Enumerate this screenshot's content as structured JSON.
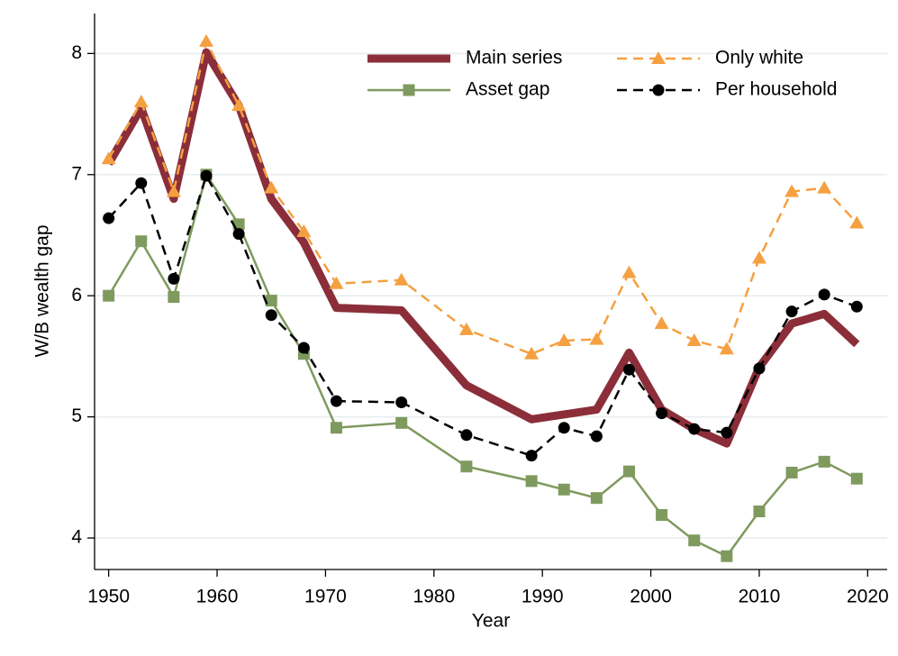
{
  "chart_data": {
    "type": "line",
    "x": [
      1950,
      1953,
      1956,
      1959,
      1962,
      1965,
      1968,
      1971,
      1977,
      1983,
      1989,
      1992,
      1995,
      1998,
      2001,
      2004,
      2007,
      2010,
      2013,
      2016,
      2019
    ],
    "series": [
      {
        "name": "Main series",
        "color": "#8b2e3a",
        "dash": "solid",
        "marker": "none",
        "values": [
          7.09,
          7.55,
          6.8,
          8.01,
          7.57,
          6.8,
          6.44,
          5.9,
          5.88,
          5.26,
          4.98,
          5.02,
          5.06,
          5.53,
          5.06,
          4.9,
          4.78,
          5.41,
          5.77,
          5.85,
          5.6
        ]
      },
      {
        "name": "Only white",
        "color": "#f5a040",
        "dash": "dashed",
        "marker": "triangle",
        "values": [
          7.13,
          7.6,
          6.86,
          8.1,
          7.57,
          6.89,
          6.53,
          6.1,
          6.13,
          5.72,
          5.52,
          5.63,
          5.64,
          6.19,
          5.77,
          5.63,
          5.56,
          6.31,
          6.86,
          6.89,
          6.6
        ]
      },
      {
        "name": "Asset gap",
        "color": "#7f9a5e",
        "dash": "solid",
        "marker": "square",
        "values": [
          6.0,
          6.45,
          5.99,
          7.0,
          6.59,
          5.96,
          5.52,
          4.91,
          4.95,
          4.59,
          4.47,
          4.4,
          4.33,
          4.55,
          4.19,
          3.98,
          3.85,
          4.22,
          4.54,
          4.63,
          4.49
        ]
      },
      {
        "name": "Per household",
        "color": "#000000",
        "dash": "dashed",
        "marker": "circle",
        "values": [
          6.64,
          6.93,
          6.14,
          6.99,
          6.51,
          5.84,
          5.57,
          5.13,
          5.12,
          4.85,
          4.68,
          4.91,
          4.84,
          5.39,
          5.03,
          4.9,
          4.87,
          5.4,
          5.87,
          6.01,
          5.91
        ]
      }
    ],
    "xlabel": "Year",
    "ylabel": "W/B wealth gap",
    "xlim": [
      1948.7,
      2021.8
    ],
    "xticks": [
      1950,
      1960,
      1970,
      1980,
      1990,
      2000,
      2010,
      2020
    ],
    "ylim": [
      3.74,
      8.33
    ],
    "yticks": [
      4,
      5,
      6,
      7,
      8
    ],
    "grid": true,
    "legend": "top-right"
  }
}
